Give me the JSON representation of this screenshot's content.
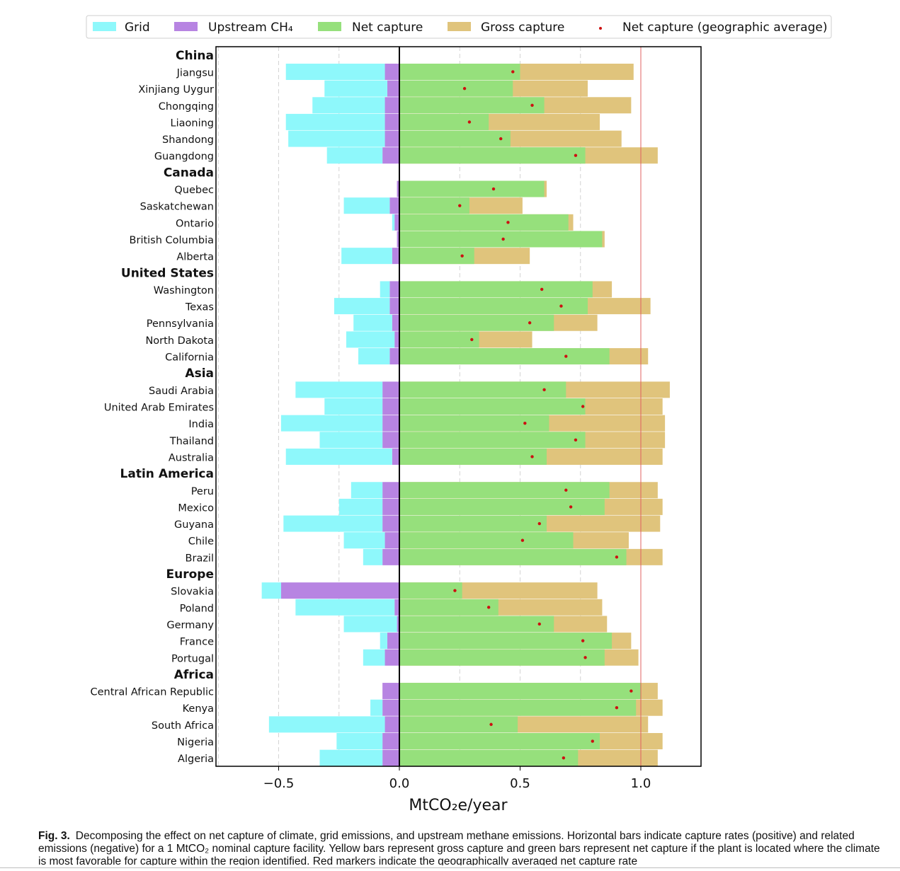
{
  "chart_data": {
    "type": "bar",
    "orientation": "horizontal",
    "stacked": true,
    "xlabel": "MtCO₂e/year",
    "xlim": [
      -0.76,
      1.25
    ],
    "xticks": [
      -0.5,
      0.0,
      0.5,
      1.0
    ],
    "xtick_labels": [
      "−0.5",
      "0.0",
      "0.5",
      "1.0"
    ],
    "reference_line": 1.0,
    "grid": "vertical dashed",
    "legend": {
      "placement": "top",
      "entries": [
        {
          "name": "Grid",
          "color": "#8ef8fb",
          "marker": "patch"
        },
        {
          "name": "Upstream CH₄",
          "color": "#b784e2",
          "marker": "patch"
        },
        {
          "name": "Net capture",
          "color": "#96e07c",
          "marker": "patch"
        },
        {
          "name": "Gross capture",
          "color": "#e0c47c",
          "marker": "patch"
        },
        {
          "name": "Net capture (geographic average)",
          "color": "#cc1111",
          "marker": "dot"
        }
      ]
    },
    "colors": {
      "grid": "#8ef8fb",
      "ch4": "#b784e2",
      "net": "#96e07c",
      "gross": "#e0c47c",
      "marker": "#cc1111",
      "refline": "#e06060"
    },
    "rows": [
      {
        "label": "China",
        "header": true
      },
      {
        "label": "Jiangsu",
        "grid": 0.41,
        "ch4": 0.06,
        "net": 0.5,
        "gross": 0.97,
        "avg": 0.47
      },
      {
        "label": "Xinjiang Uygur",
        "grid": 0.26,
        "ch4": 0.05,
        "net": 0.47,
        "gross": 0.78,
        "avg": 0.27
      },
      {
        "label": "Chongqing",
        "grid": 0.3,
        "ch4": 0.06,
        "net": 0.6,
        "gross": 0.96,
        "avg": 0.55
      },
      {
        "label": "Liaoning",
        "grid": 0.41,
        "ch4": 0.06,
        "net": 0.37,
        "gross": 0.83,
        "avg": 0.29
      },
      {
        "label": "Shandong",
        "grid": 0.4,
        "ch4": 0.06,
        "net": 0.46,
        "gross": 0.92,
        "avg": 0.42
      },
      {
        "label": "Guangdong",
        "grid": 0.23,
        "ch4": 0.07,
        "net": 0.77,
        "gross": 1.07,
        "avg": 0.73
      },
      {
        "label": "Canada",
        "header": true
      },
      {
        "label": "Quebec",
        "grid": 0.0,
        "ch4": 0.01,
        "net": 0.6,
        "gross": 0.61,
        "avg": 0.39
      },
      {
        "label": "Saskatchewan",
        "grid": 0.19,
        "ch4": 0.04,
        "net": 0.29,
        "gross": 0.51,
        "avg": 0.25
      },
      {
        "label": "Ontario",
        "grid": 0.01,
        "ch4": 0.02,
        "net": 0.7,
        "gross": 0.72,
        "avg": 0.45
      },
      {
        "label": "British Columbia",
        "grid": 0.0,
        "ch4": 0.01,
        "net": 0.84,
        "gross": 0.85,
        "avg": 0.43
      },
      {
        "label": "Alberta",
        "grid": 0.21,
        "ch4": 0.03,
        "net": 0.31,
        "gross": 0.54,
        "avg": 0.26
      },
      {
        "label": "United States",
        "header": true
      },
      {
        "label": "Washington",
        "grid": 0.04,
        "ch4": 0.04,
        "net": 0.8,
        "gross": 0.88,
        "avg": 0.59
      },
      {
        "label": "Texas",
        "grid": 0.23,
        "ch4": 0.04,
        "net": 0.78,
        "gross": 1.04,
        "avg": 0.67
      },
      {
        "label": "Pennsylvania",
        "grid": 0.16,
        "ch4": 0.03,
        "net": 0.64,
        "gross": 0.82,
        "avg": 0.54
      },
      {
        "label": "North Dakota",
        "grid": 0.2,
        "ch4": 0.02,
        "net": 0.33,
        "gross": 0.55,
        "avg": 0.3
      },
      {
        "label": "California",
        "grid": 0.13,
        "ch4": 0.04,
        "net": 0.87,
        "gross": 1.03,
        "avg": 0.69
      },
      {
        "label": "Asia",
        "header": true
      },
      {
        "label": "Saudi Arabia",
        "grid": 0.36,
        "ch4": 0.07,
        "net": 0.69,
        "gross": 1.12,
        "avg": 0.6
      },
      {
        "label": "United Arab Emirates",
        "grid": 0.24,
        "ch4": 0.07,
        "net": 0.77,
        "gross": 1.09,
        "avg": 0.76
      },
      {
        "label": "India",
        "grid": 0.42,
        "ch4": 0.07,
        "net": 0.62,
        "gross": 1.1,
        "avg": 0.52
      },
      {
        "label": "Thailand",
        "grid": 0.26,
        "ch4": 0.07,
        "net": 0.77,
        "gross": 1.1,
        "avg": 0.73
      },
      {
        "label": "Australia",
        "grid": 0.44,
        "ch4": 0.03,
        "net": 0.61,
        "gross": 1.09,
        "avg": 0.55
      },
      {
        "label": "Latin America",
        "header": true
      },
      {
        "label": "Peru",
        "grid": 0.13,
        "ch4": 0.07,
        "net": 0.87,
        "gross": 1.07,
        "avg": 0.69
      },
      {
        "label": "Mexico",
        "grid": 0.18,
        "ch4": 0.07,
        "net": 0.85,
        "gross": 1.09,
        "avg": 0.71
      },
      {
        "label": "Guyana",
        "grid": 0.41,
        "ch4": 0.07,
        "net": 0.61,
        "gross": 1.08,
        "avg": 0.58
      },
      {
        "label": "Chile",
        "grid": 0.17,
        "ch4": 0.06,
        "net": 0.72,
        "gross": 0.95,
        "avg": 0.51
      },
      {
        "label": "Brazil",
        "grid": 0.08,
        "ch4": 0.07,
        "net": 0.94,
        "gross": 1.09,
        "avg": 0.9
      },
      {
        "label": "Europe",
        "header": true
      },
      {
        "label": "Slovakia",
        "grid": 0.08,
        "ch4": 0.49,
        "net": 0.26,
        "gross": 0.82,
        "avg": 0.23
      },
      {
        "label": "Poland",
        "grid": 0.41,
        "ch4": 0.02,
        "net": 0.41,
        "gross": 0.84,
        "avg": 0.37
      },
      {
        "label": "Germany",
        "grid": 0.22,
        "ch4": 0.01,
        "net": 0.64,
        "gross": 0.86,
        "avg": 0.58
      },
      {
        "label": "France",
        "grid": 0.03,
        "ch4": 0.05,
        "net": 0.88,
        "gross": 0.96,
        "avg": 0.76
      },
      {
        "label": "Portugal",
        "grid": 0.09,
        "ch4": 0.06,
        "net": 0.85,
        "gross": 0.99,
        "avg": 0.77
      },
      {
        "label": "Africa",
        "header": true
      },
      {
        "label": "Central African Republic",
        "grid": 0.0,
        "ch4": 0.07,
        "net": 1.0,
        "gross": 1.07,
        "avg": 0.96
      },
      {
        "label": "Kenya",
        "grid": 0.05,
        "ch4": 0.07,
        "net": 0.98,
        "gross": 1.09,
        "avg": 0.9
      },
      {
        "label": "South Africa",
        "grid": 0.48,
        "ch4": 0.06,
        "net": 0.49,
        "gross": 1.03,
        "avg": 0.38
      },
      {
        "label": "Nigeria",
        "grid": 0.19,
        "ch4": 0.07,
        "net": 0.83,
        "gross": 1.09,
        "avg": 0.8
      },
      {
        "label": "Algeria",
        "grid": 0.26,
        "ch4": 0.07,
        "net": 0.74,
        "gross": 1.07,
        "avg": 0.68
      }
    ]
  },
  "caption": {
    "label": "Fig. 3.",
    "text": "Decomposing the effect on net capture of climate, grid emissions, and upstream methane emissions. Horizontal bars indicate capture rates (positive) and related emissions (negative) for a 1 MtCO₂ nominal capture facility. Yellow bars represent gross capture and green bars represent net capture if the plant is located where the climate is most favorable for capture within the region identified. Red markers indicate the geographically averaged net capture rate"
  }
}
